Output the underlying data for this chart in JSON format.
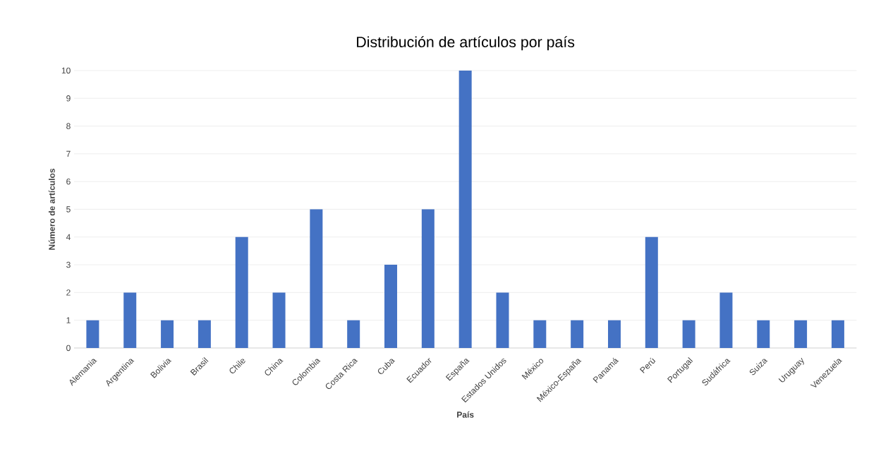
{
  "chart_data": {
    "type": "bar",
    "title": "Distribución de artículos por país",
    "xlabel": "País",
    "ylabel": "Número de artículos",
    "categories": [
      "Alemania",
      "Argentina",
      "Bolivia",
      "Brasil",
      "Chile",
      "China",
      "Colombia",
      "Costa Rica",
      "Cuba",
      "Ecuador",
      "España",
      "Estados Unidos",
      "México",
      "México-España",
      "Panamá",
      "Perú",
      "Portugal",
      "Sudáfrica",
      "Suiza",
      "Uruguay",
      "Venezuela"
    ],
    "values": [
      1,
      2,
      1,
      1,
      4,
      2,
      5,
      1,
      3,
      5,
      10,
      2,
      1,
      1,
      1,
      4,
      1,
      2,
      1,
      1,
      1
    ],
    "color": "#4472c4",
    "ylim": [
      0,
      10
    ],
    "yticks": [
      0,
      1,
      2,
      3,
      4,
      5,
      6,
      7,
      8,
      9,
      10
    ],
    "grid": "y"
  }
}
